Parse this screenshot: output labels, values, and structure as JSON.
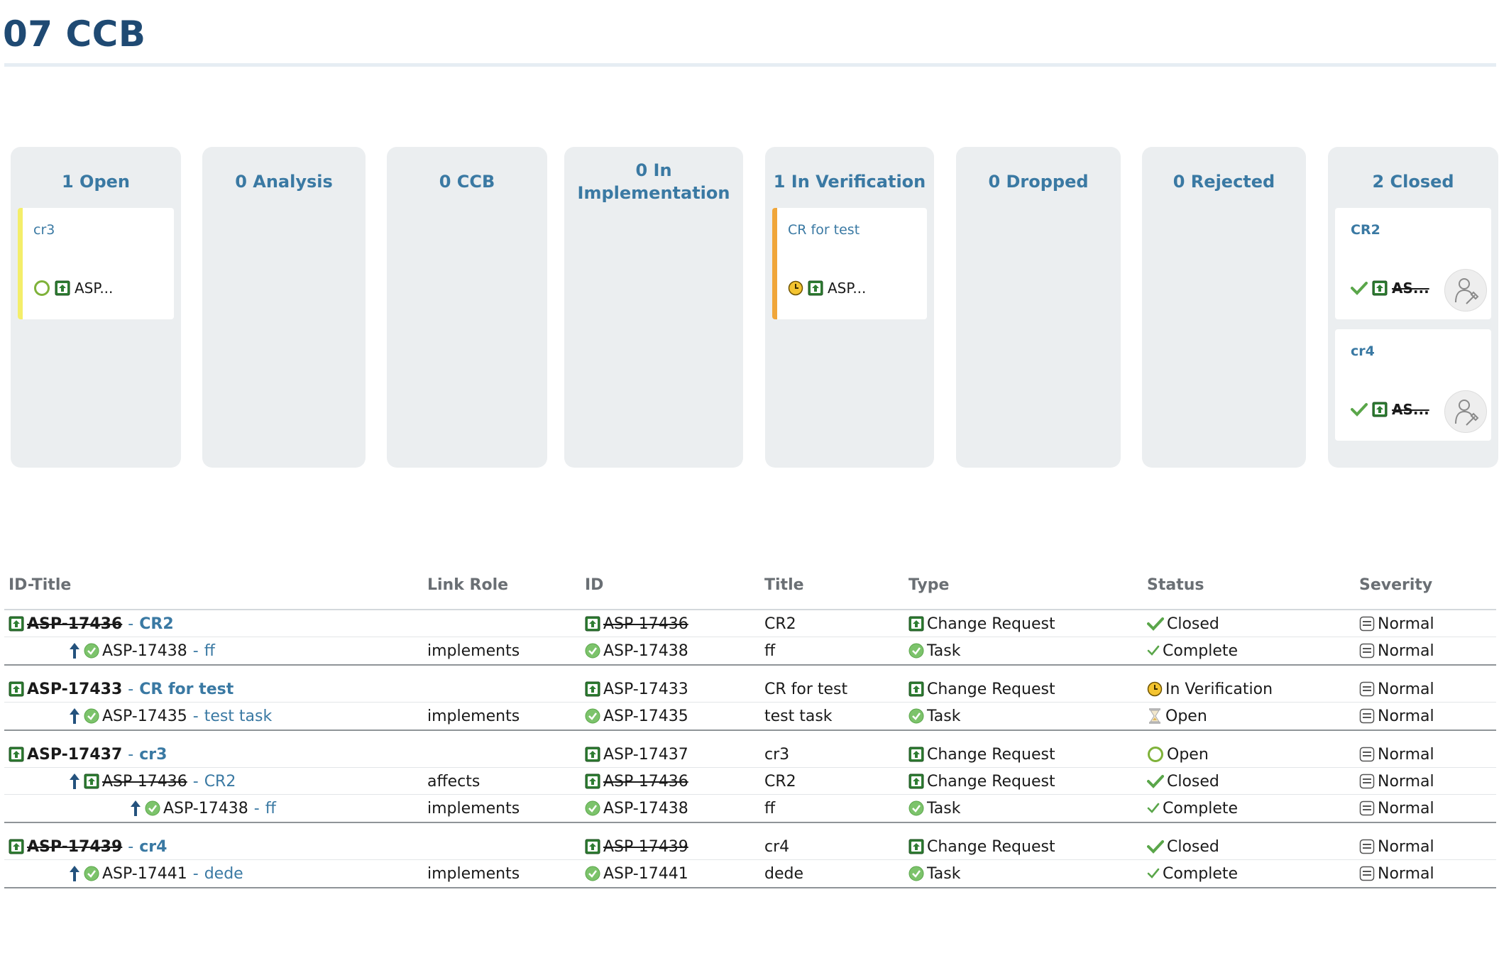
{
  "page": {
    "title": "07 CCB"
  },
  "board": {
    "columns": [
      {
        "label": "1 Open",
        "cards": [
          {
            "title": "cr3",
            "key": "ASP...",
            "status_icon": "open-circle-icon",
            "bar_color": "#f4ee6a",
            "struck": false,
            "bold": false
          }
        ]
      },
      {
        "label": "0 Analysis",
        "cards": []
      },
      {
        "label": "0 CCB",
        "cards": []
      },
      {
        "label": "0 In Implementation",
        "cards": []
      },
      {
        "label": "1 In Verification",
        "cards": [
          {
            "title": "CR for test",
            "key": "ASP...",
            "status_icon": "clock-icon",
            "bar_color": "#f0a63a",
            "struck": false,
            "bold": false
          }
        ]
      },
      {
        "label": "0 Dropped",
        "cards": []
      },
      {
        "label": "0 Rejected",
        "cards": []
      },
      {
        "label": "2 Closed",
        "cards": [
          {
            "title": "CR2",
            "key": "AS...",
            "status_icon": "check-icon",
            "bar_color": "",
            "struck": true,
            "bold": true
          },
          {
            "title": "cr4",
            "key": "AS...",
            "status_icon": "check-icon",
            "bar_color": "",
            "struck": true,
            "bold": true
          }
        ]
      }
    ]
  },
  "table": {
    "headers": {
      "id_title": "ID-Title",
      "link_role": "Link Role",
      "id": "ID",
      "title": "Title",
      "type": "Type",
      "status": "Status",
      "severity": "Severity"
    },
    "groups": [
      {
        "rows": [
          {
            "level": 0,
            "key": "ASP-17436",
            "title": "CR2",
            "struck": true,
            "item_icon": "change-request-icon",
            "link_role": "",
            "id": "ASP-17436",
            "title_col": "CR2",
            "type": "Change Request",
            "type_icon": "change-request-icon",
            "status": "Closed",
            "status_icon": "check-icon",
            "severity": "Normal"
          },
          {
            "level": 1,
            "key": "ASP-17438",
            "title": "ff",
            "struck": false,
            "item_icon": "task-icon",
            "link_role": "implements",
            "id": "ASP-17438",
            "title_col": "ff",
            "type": "Task",
            "type_icon": "task-icon",
            "status": "Complete",
            "status_icon": "small-check-icon",
            "severity": "Normal"
          }
        ]
      },
      {
        "rows": [
          {
            "level": 0,
            "key": "ASP-17433",
            "title": "CR for test",
            "struck": false,
            "item_icon": "change-request-icon",
            "link_role": "",
            "id": "ASP-17433",
            "title_col": "CR for test",
            "type": "Change Request",
            "type_icon": "change-request-icon",
            "status": "In Verification",
            "status_icon": "clock-icon",
            "severity": "Normal"
          },
          {
            "level": 1,
            "key": "ASP-17435",
            "title": "test task",
            "struck": false,
            "item_icon": "task-icon",
            "link_role": "implements",
            "id": "ASP-17435",
            "title_col": "test task",
            "type": "Task",
            "type_icon": "task-icon",
            "status": "Open",
            "status_icon": "hourglass-icon",
            "severity": "Normal"
          }
        ]
      },
      {
        "rows": [
          {
            "level": 0,
            "key": "ASP-17437",
            "title": "cr3",
            "struck": false,
            "item_icon": "change-request-icon",
            "link_role": "",
            "id": "ASP-17437",
            "title_col": "cr3",
            "type": "Change Request",
            "type_icon": "change-request-icon",
            "status": "Open",
            "status_icon": "open-circle-icon",
            "severity": "Normal"
          },
          {
            "level": 1,
            "key": "ASP-17436",
            "title": "CR2",
            "struck": true,
            "item_icon": "change-request-icon",
            "link_role": "affects",
            "id": "ASP-17436",
            "title_col": "CR2",
            "type": "Change Request",
            "type_icon": "change-request-icon",
            "status": "Closed",
            "status_icon": "check-icon",
            "severity": "Normal"
          },
          {
            "level": 2,
            "key": "ASP-17438",
            "title": "ff",
            "struck": false,
            "item_icon": "task-icon",
            "link_role": "implements",
            "id": "ASP-17438",
            "title_col": "ff",
            "type": "Task",
            "type_icon": "task-icon",
            "status": "Complete",
            "status_icon": "small-check-icon",
            "severity": "Normal"
          }
        ]
      },
      {
        "rows": [
          {
            "level": 0,
            "key": "ASP-17439",
            "title": "cr4",
            "struck": true,
            "item_icon": "change-request-icon",
            "link_role": "",
            "id": "ASP-17439",
            "title_col": "cr4",
            "type": "Change Request",
            "type_icon": "change-request-icon",
            "status": "Closed",
            "status_icon": "check-icon",
            "severity": "Normal"
          },
          {
            "level": 1,
            "key": "ASP-17441",
            "title": "dede",
            "struck": false,
            "item_icon": "task-icon",
            "link_role": "implements",
            "id": "ASP-17441",
            "title_col": "dede",
            "type": "Task",
            "type_icon": "task-icon",
            "status": "Complete",
            "status_icon": "small-check-icon",
            "severity": "Normal"
          }
        ]
      }
    ]
  },
  "colors": {
    "accent": "#3a79a3",
    "title": "#1f4a73",
    "column_bg": "#ebeef0"
  }
}
